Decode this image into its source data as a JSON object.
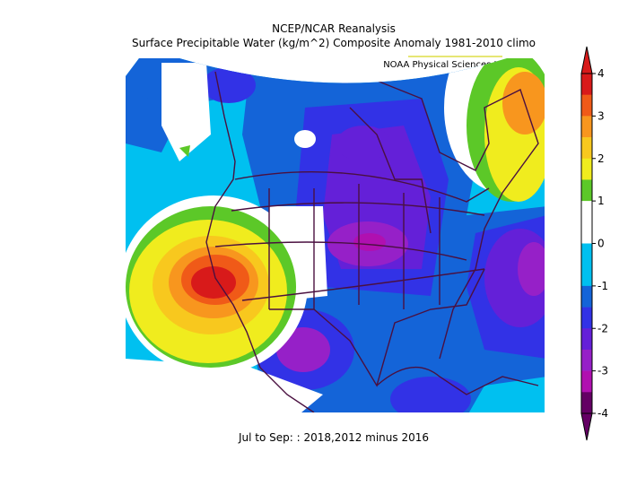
{
  "header": {
    "title": "NCEP/NCAR Reanalysis",
    "subtitle": "Surface Precipitable Water (kg/m^2) Composite Anomaly 1981-2010 climo",
    "credit": "NOAA Physical Sciences Laboratory"
  },
  "footer": "Jul to Sep: : 2018,2012 minus 2016",
  "colorbar": {
    "ticks": [
      4,
      3,
      2,
      1,
      0,
      -1,
      -2,
      -3,
      -4
    ],
    "colors": [
      "#d81a1a",
      "#f05a18",
      "#f8961e",
      "#f8c81e",
      "#f0ec1e",
      "#5cc828",
      "#ffffff",
      "#ffffff",
      "#00c0f0",
      "#00c0f0",
      "#1464d8",
      "#3232e6",
      "#6420d8",
      "#9620c8",
      "#b010b0",
      "#640064"
    ]
  }
}
